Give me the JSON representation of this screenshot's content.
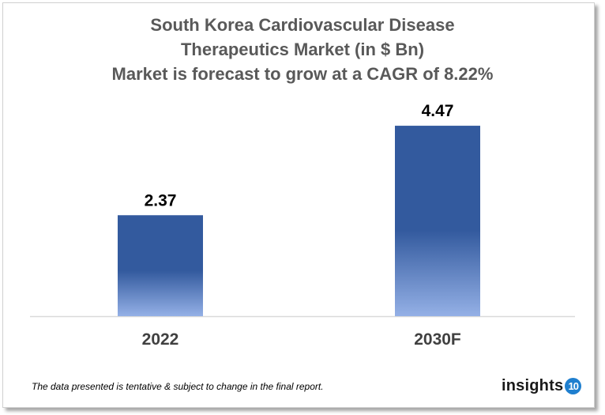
{
  "chart_data": {
    "type": "bar",
    "title_lines": [
      "South Korea Cardiovascular Disease",
      "Therapeutics Market (in $ Bn)",
      "Market is forecast to grow at a CAGR of 8.22%"
    ],
    "categories": [
      "2022",
      "2030F"
    ],
    "values": [
      2.37,
      4.47
    ],
    "data_labels": [
      "2.37",
      "4.47"
    ],
    "xlabel": "",
    "ylabel": "",
    "ylim": [
      0,
      5
    ],
    "grid": false,
    "legend": "none",
    "colors": {
      "bar_top": "#335a9e",
      "bar_bottom": "#94b0e6",
      "title": "#595959"
    }
  },
  "footer": {
    "note": "The data presented is tentative & subject to change in the final report.",
    "logo_text": "insights",
    "logo_badge": "10"
  }
}
